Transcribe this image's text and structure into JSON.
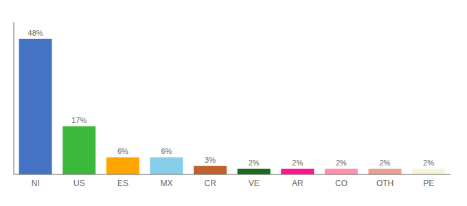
{
  "chart_data": {
    "type": "bar",
    "categories": [
      "NI",
      "US",
      "ES",
      "MX",
      "CR",
      "VE",
      "AR",
      "CO",
      "OTH",
      "PE"
    ],
    "values": [
      48,
      17,
      6,
      6,
      3,
      2,
      2,
      2,
      2,
      2
    ],
    "value_labels": [
      "48%",
      "17%",
      "6%",
      "6%",
      "3%",
      "2%",
      "2%",
      "2%",
      "2%",
      "2%"
    ],
    "data_labels": true,
    "colors": [
      "#4472C4",
      "#3CB83C",
      "#FFA500",
      "#87CEEB",
      "#C0622E",
      "#1B6B20",
      "#FF1493",
      "#FF8FAB",
      "#E8A090",
      "#F5F5D8"
    ],
    "ylim": [
      0,
      54
    ],
    "grid": false,
    "tick_labels": "x"
  }
}
